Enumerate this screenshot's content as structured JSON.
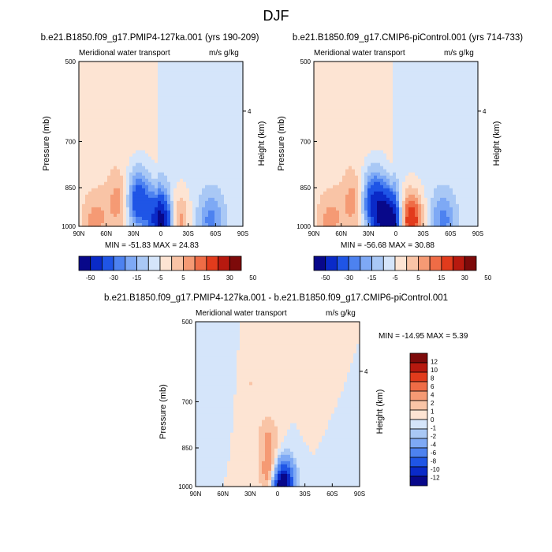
{
  "main_title": "DJF",
  "colors": {
    "neg": [
      "#08088a",
      "#0a2ac8",
      "#1f55e6",
      "#4d82f0",
      "#7ea9f5",
      "#a9c8f5",
      "#d5e5fa"
    ],
    "pos": [
      "#fde4d3",
      "#f9c4a6",
      "#f59a74",
      "#ef6c46",
      "#e23b1c",
      "#b7190f",
      "#7d0a0a"
    ]
  },
  "charts": [
    {
      "title": "b.e21.B1850.f09_g17.PMIP4-127ka.001 (yrs 190-209)",
      "left_label": "Meridional water transport",
      "right_label": "m/s g/kg",
      "stats": "MIN = -51.83  MAX =  24.83",
      "colorbar_labels": [
        "-50",
        "-30",
        "-15",
        "-5",
        "5",
        "15",
        "30",
        "50"
      ]
    },
    {
      "title": "b.e21.B1850.f09_g17.CMIP6-piControl.001 (yrs 714-733)",
      "left_label": "Meridional water transport",
      "right_label": "m/s g/kg",
      "stats": "MIN = -56.68  MAX =  30.88",
      "colorbar_labels": [
        "-50",
        "-30",
        "-15",
        "-5",
        "5",
        "15",
        "30",
        "50"
      ]
    },
    {
      "title": "b.e21.B1850.f09_g17.PMIP4-127ka.001 - b.e21.B1850.f09_g17.CMIP6-piControl.001",
      "left_label": "Meridional water transport",
      "right_label": "m/s g/kg",
      "stats": "MIN = -14.95  MAX =   5.39",
      "colorbar_labels": [
        "12",
        "10",
        "8",
        "6",
        "4",
        "2",
        "1",
        "0",
        "-1",
        "-2",
        "-4",
        "-6",
        "-8",
        "-10",
        "-12"
      ]
    }
  ],
  "chart_data": [
    {
      "type": "heatmap",
      "title": "b.e21.B1850.f09_g17.PMIP4-127ka.001 (yrs 190-209)",
      "ylabel": "Pressure (mb)",
      "y2label": "Height (km)",
      "x_ticks": [
        "90N",
        "60N",
        "30N",
        "0",
        "30S",
        "60S",
        "90S"
      ],
      "y_ticks": [
        "500",
        "700",
        "850",
        "1000"
      ],
      "y2_ticks": [
        "4"
      ],
      "xlim": [
        90,
        -90
      ],
      "ylim": [
        1000,
        500
      ],
      "min": -51.83,
      "max": 24.83,
      "levels": [
        -50,
        -40,
        -30,
        -20,
        -15,
        -10,
        -5,
        0,
        5,
        10,
        15,
        20,
        30,
        40,
        50
      ],
      "features": [
        {
          "lat": -2,
          "p": 980,
          "value": -51.83
        },
        {
          "lat": 25,
          "p": 900,
          "value": -30
        },
        {
          "lat": -15,
          "p": 975,
          "value": 24.83
        },
        {
          "lat": 45,
          "p": 900,
          "value": 12
        },
        {
          "lat": 72,
          "p": 975,
          "value": 10
        },
        {
          "lat": -55,
          "p": 975,
          "value": -15
        },
        {
          "lat": 40,
          "p": 600,
          "value": 2
        },
        {
          "lat": -40,
          "p": 600,
          "value": -2
        }
      ]
    },
    {
      "type": "heatmap",
      "title": "b.e21.B1850.f09_g17.CMIP6-piControl.001 (yrs 714-733)",
      "ylabel": "Pressure (mb)",
      "y2label": "Height (km)",
      "x_ticks": [
        "90N",
        "60N",
        "30N",
        "0",
        "30S",
        "60S",
        "90S"
      ],
      "y_ticks": [
        "500",
        "700",
        "850",
        "1000"
      ],
      "y2_ticks": [
        "4"
      ],
      "xlim": [
        90,
        -90
      ],
      "ylim": [
        1000,
        500
      ],
      "min": -56.68,
      "max": 30.88,
      "levels": [
        -50,
        -40,
        -30,
        -20,
        -15,
        -10,
        -5,
        0,
        5,
        10,
        15,
        20,
        30,
        40,
        50
      ],
      "features": [
        {
          "lat": 8,
          "p": 980,
          "value": -56.68
        },
        {
          "lat": 25,
          "p": 900,
          "value": -30
        },
        {
          "lat": -15,
          "p": 975,
          "value": 30.88
        },
        {
          "lat": 45,
          "p": 900,
          "value": 12
        },
        {
          "lat": 72,
          "p": 975,
          "value": 10
        },
        {
          "lat": -52,
          "p": 975,
          "value": -15
        },
        {
          "lat": 40,
          "p": 600,
          "value": 2
        },
        {
          "lat": -40,
          "p": 600,
          "value": -2
        }
      ]
    },
    {
      "type": "heatmap",
      "title": "b.e21.B1850.f09_g17.PMIP4-127ka.001 - b.e21.B1850.f09_g17.CMIP6-piControl.001",
      "ylabel": "Pressure (mb)",
      "y2label": "Height (km)",
      "x_ticks": [
        "90N",
        "60N",
        "30N",
        "0",
        "30S",
        "60S",
        "90S"
      ],
      "y_ticks": [
        "500",
        "700",
        "850",
        "1000"
      ],
      "y2_ticks": [
        "4"
      ],
      "xlim": [
        90,
        -90
      ],
      "ylim": [
        1000,
        500
      ],
      "min": -14.95,
      "max": 5.39,
      "levels": [
        -12,
        -10,
        -8,
        -6,
        -4,
        -2,
        -1,
        0,
        1,
        2,
        4,
        6,
        8,
        10,
        12
      ],
      "features": [
        {
          "lat": -5,
          "p": 985,
          "value": -14.95
        },
        {
          "lat": 5,
          "p": 960,
          "value": 5.39
        },
        {
          "lat": 10,
          "p": 820,
          "value": 2
        },
        {
          "lat": 30,
          "p": 650,
          "value": 1
        },
        {
          "lat": -40,
          "p": 650,
          "value": 1
        },
        {
          "lat": -70,
          "p": 900,
          "value": -1
        },
        {
          "lat": 60,
          "p": 600,
          "value": -1
        }
      ]
    }
  ]
}
